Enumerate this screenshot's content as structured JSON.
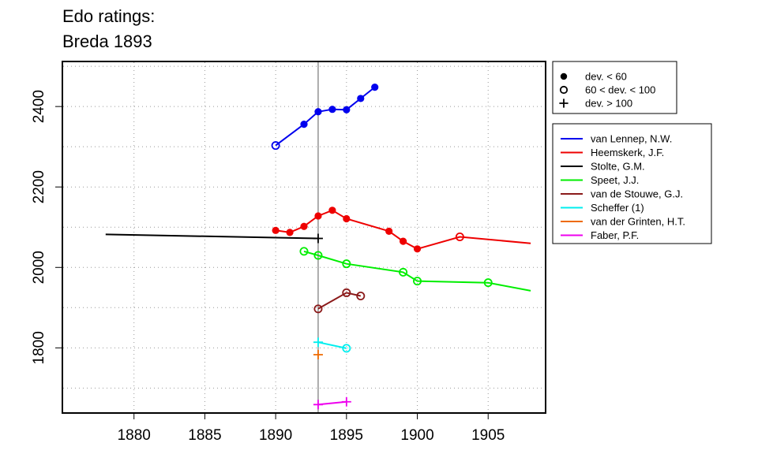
{
  "chart_data": {
    "type": "line",
    "title_lines": [
      "Edo ratings:",
      "Breda 1893"
    ],
    "xlabel": "",
    "ylabel": "",
    "xlim": [
      1875,
      1909
    ],
    "ylim": [
      1640,
      2510
    ],
    "x_ticks": [
      1880,
      1885,
      1890,
      1895,
      1900,
      1905
    ],
    "y_ticks": [
      1800,
      2000,
      2200,
      2400
    ],
    "grid": "dotted",
    "reference_line_x": 1893,
    "marker_legend": [
      {
        "marker": "filled",
        "label": "dev. < 60"
      },
      {
        "marker": "open",
        "label": "60 < dev. < 100"
      },
      {
        "marker": "plus",
        "label": "dev. > 100"
      }
    ],
    "series": [
      {
        "name": "van Lennep, N.W.",
        "color": "#0000ee",
        "points": [
          {
            "x": 1890,
            "y": 2303,
            "m": "open"
          },
          {
            "x": 1892,
            "y": 2356,
            "m": "filled"
          },
          {
            "x": 1893,
            "y": 2387,
            "m": "filled"
          },
          {
            "x": 1894,
            "y": 2393,
            "m": "filled"
          },
          {
            "x": 1895,
            "y": 2392,
            "m": "filled"
          },
          {
            "x": 1896,
            "y": 2420,
            "m": "filled"
          },
          {
            "x": 1897,
            "y": 2448,
            "m": "filled"
          }
        ]
      },
      {
        "name": "Heemskerk, J.F.",
        "color": "#ee0000",
        "points": [
          {
            "x": 1890,
            "y": 2092,
            "m": "filled"
          },
          {
            "x": 1891,
            "y": 2087,
            "m": "filled"
          },
          {
            "x": 1892,
            "y": 2102,
            "m": "filled"
          },
          {
            "x": 1893,
            "y": 2128,
            "m": "filled"
          },
          {
            "x": 1894,
            "y": 2142,
            "m": "filled"
          },
          {
            "x": 1895,
            "y": 2121,
            "m": "filled"
          },
          {
            "x": 1898,
            "y": 2090,
            "m": "filled"
          },
          {
            "x": 1899,
            "y": 2065,
            "m": "filled"
          },
          {
            "x": 1900,
            "y": 2046,
            "m": "filled"
          },
          {
            "x": 1903,
            "y": 2076,
            "m": "open"
          },
          {
            "x": 1908,
            "y": 2060,
            "m": "none"
          }
        ]
      },
      {
        "name": "Stolte, G.M.",
        "color": "#000000",
        "points": [
          {
            "x": 1878,
            "y": 2082,
            "m": "none"
          },
          {
            "x": 1893,
            "y": 2072,
            "m": "plus"
          }
        ]
      },
      {
        "name": "Speet, J.J.",
        "color": "#00ee00",
        "points": [
          {
            "x": 1892,
            "y": 2040,
            "m": "open"
          },
          {
            "x": 1893,
            "y": 2030,
            "m": "open"
          },
          {
            "x": 1895,
            "y": 2009,
            "m": "open"
          },
          {
            "x": 1899,
            "y": 1988,
            "m": "open"
          },
          {
            "x": 1900,
            "y": 1966,
            "m": "open"
          },
          {
            "x": 1905,
            "y": 1962,
            "m": "open"
          },
          {
            "x": 1908,
            "y": 1942,
            "m": "none"
          }
        ]
      },
      {
        "name": "van de Stouwe, G.J.",
        "color": "#8b1a1a",
        "points": [
          {
            "x": 1893,
            "y": 1897,
            "m": "open"
          },
          {
            "x": 1895,
            "y": 1937,
            "m": "open"
          },
          {
            "x": 1896,
            "y": 1929,
            "m": "open"
          }
        ]
      },
      {
        "name": "Scheffer (1)",
        "color": "#00eeee",
        "points": [
          {
            "x": 1893,
            "y": 1814,
            "m": "plus"
          },
          {
            "x": 1895,
            "y": 1799,
            "m": "open"
          }
        ]
      },
      {
        "name": "van der Grinten, H.T.",
        "color": "#ee6a00",
        "points": [
          {
            "x": 1893,
            "y": 1783,
            "m": "plus"
          }
        ]
      },
      {
        "name": "Faber, P.F.",
        "color": "#ee00ee",
        "points": [
          {
            "x": 1893,
            "y": 1659,
            "m": "plus"
          },
          {
            "x": 1895,
            "y": 1666,
            "m": "plus"
          }
        ]
      }
    ]
  }
}
